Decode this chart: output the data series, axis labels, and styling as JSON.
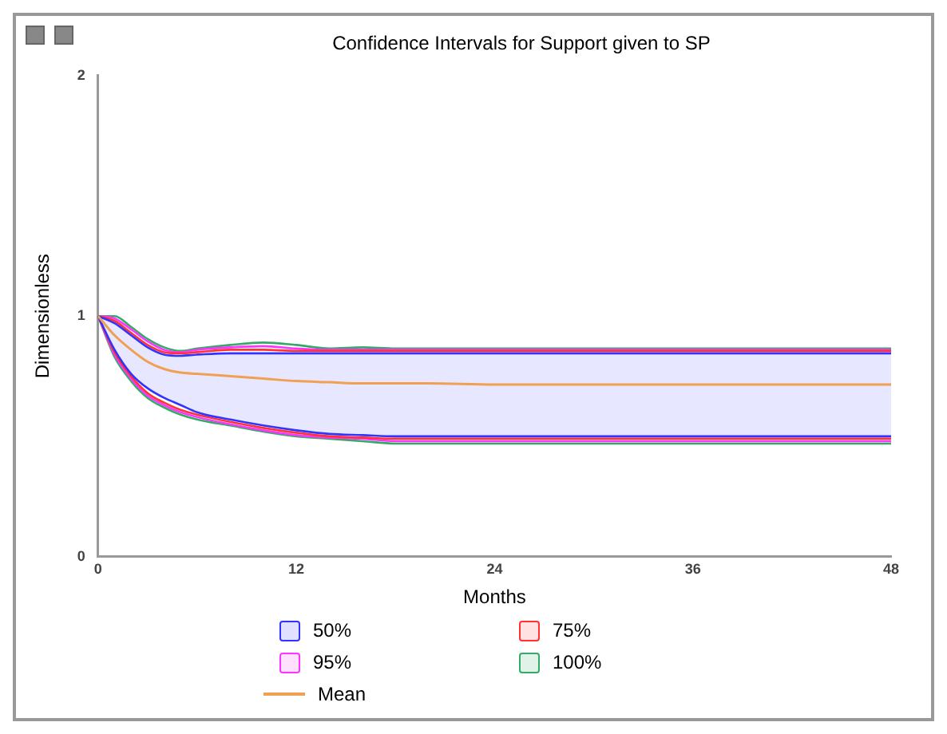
{
  "chart_data": {
    "type": "line",
    "title": "Confidence Intervals for Support given to SP",
    "xlabel": "Months",
    "ylabel": "Dimensionless",
    "x": [
      0,
      1,
      2,
      3,
      4,
      5,
      6,
      8,
      10,
      12,
      14,
      16,
      18,
      20,
      24,
      30,
      36,
      42,
      48
    ],
    "series": [
      {
        "name": "50%",
        "color": "#3333ff",
        "values": [
          1,
          0.97,
          0.92,
          0.87,
          0.84,
          0.835,
          0.84,
          0.845,
          0.845,
          0.845,
          0.845,
          0.845,
          0.845,
          0.845,
          0.845,
          0.845,
          0.845,
          0.845,
          0.845
        ],
        "upper": [
          1,
          0.97,
          0.92,
          0.87,
          0.84,
          0.835,
          0.84,
          0.845,
          0.845,
          0.845,
          0.845,
          0.845,
          0.845,
          0.845,
          0.845,
          0.845,
          0.845,
          0.845,
          0.845
        ],
        "lower": [
          1,
          0.86,
          0.76,
          0.7,
          0.66,
          0.63,
          0.6,
          0.57,
          0.545,
          0.525,
          0.51,
          0.505,
          0.5,
          0.5,
          0.5,
          0.5,
          0.5,
          0.5,
          0.5
        ]
      },
      {
        "color": "#3333ff",
        "values": [
          1,
          0.86,
          0.76,
          0.7,
          0.66,
          0.63,
          0.6,
          0.57,
          0.545,
          0.525,
          0.51,
          0.505,
          0.5,
          0.5,
          0.5,
          0.5,
          0.5,
          0.5,
          0.5
        ]
      },
      {
        "name": "75%",
        "color": "#ff3333",
        "values": [
          1,
          0.98,
          0.93,
          0.88,
          0.85,
          0.845,
          0.85,
          0.86,
          0.86,
          0.855,
          0.855,
          0.855,
          0.855,
          0.855,
          0.855,
          0.855,
          0.855,
          0.855,
          0.855
        ]
      },
      {
        "color": "#ff3333",
        "values": [
          1,
          0.85,
          0.75,
          0.68,
          0.64,
          0.61,
          0.59,
          0.56,
          0.535,
          0.515,
          0.5,
          0.495,
          0.49,
          0.49,
          0.49,
          0.49,
          0.49,
          0.49,
          0.49
        ]
      },
      {
        "name": "95%",
        "color": "#ff33ff",
        "values": [
          1,
          0.99,
          0.945,
          0.895,
          0.86,
          0.85,
          0.86,
          0.87,
          0.875,
          0.865,
          0.86,
          0.86,
          0.86,
          0.86,
          0.86,
          0.86,
          0.86,
          0.86,
          0.86
        ]
      },
      {
        "color": "#ff33ff",
        "values": [
          1,
          0.84,
          0.74,
          0.67,
          0.63,
          0.6,
          0.58,
          0.55,
          0.525,
          0.505,
          0.495,
          0.49,
          0.48,
          0.48,
          0.48,
          0.48,
          0.48,
          0.48,
          0.48
        ]
      },
      {
        "name": "100%",
        "color": "#33aa66",
        "values": [
          1,
          1.0,
          0.955,
          0.905,
          0.87,
          0.855,
          0.865,
          0.88,
          0.89,
          0.88,
          0.865,
          0.87,
          0.865,
          0.865,
          0.865,
          0.865,
          0.865,
          0.865,
          0.865
        ]
      },
      {
        "color": "#33aa66",
        "values": [
          1,
          0.83,
          0.73,
          0.66,
          0.62,
          0.59,
          0.57,
          0.545,
          0.52,
          0.5,
          0.49,
          0.48,
          0.47,
          0.47,
          0.47,
          0.47,
          0.47,
          0.47,
          0.47
        ]
      },
      {
        "name": "Mean",
        "type": "line",
        "color": "#f0a050",
        "values": [
          1,
          0.92,
          0.86,
          0.81,
          0.78,
          0.765,
          0.76,
          0.75,
          0.74,
          0.73,
          0.725,
          0.72,
          0.72,
          0.72,
          0.715,
          0.715,
          0.715,
          0.715,
          0.715
        ]
      }
    ],
    "xlim": [
      0,
      48
    ],
    "xticks": [
      0,
      12,
      24,
      36,
      48
    ],
    "ylim": [
      0,
      2
    ],
    "yticks": [
      0,
      1,
      2
    ],
    "grid": false,
    "legend": "bottom",
    "marker": "none"
  }
}
